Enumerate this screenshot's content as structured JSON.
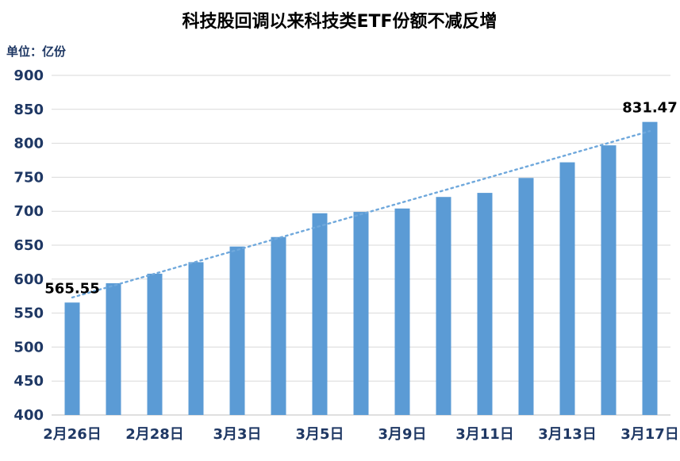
{
  "chart_data": {
    "type": "bar",
    "title": "科技股回调以来科技类ETF份额不减反增",
    "unit_label": "单位：亿份",
    "categories": [
      "2月26日",
      "2月28日",
      "3月3日",
      "3月5日",
      "3月9日",
      "3月11日",
      "3月13日",
      "3月17日"
    ],
    "tick_indices": [
      0,
      2,
      4,
      6,
      8,
      10,
      12,
      14
    ],
    "values": [
      565.55,
      594,
      608,
      625,
      648,
      662,
      697,
      699,
      704,
      721,
      727,
      749,
      772,
      797,
      831.47
    ],
    "ylim": [
      400,
      900
    ],
    "ytick_step": 50,
    "ylabel": "",
    "xlabel": "",
    "grid": true,
    "legend": false,
    "annotations": [
      {
        "index": 0,
        "text": "565.55"
      },
      {
        "index": 14,
        "text": "831.47"
      }
    ],
    "trendline": {
      "style": "dotted",
      "start_value": 573,
      "end_value": 818
    },
    "colors": {
      "bar": "#5B9BD5",
      "trend": "#6FA8DC",
      "grid": "#D9D9D9",
      "axis": "#BFBFBF",
      "title_text": "#000000",
      "tick_text": "#1F3864",
      "annotation_text": "#000000"
    }
  }
}
